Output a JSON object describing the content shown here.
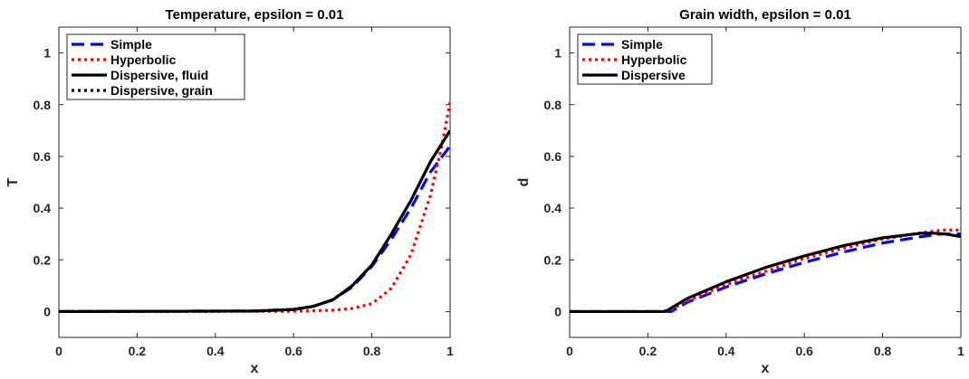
{
  "chart_data": [
    {
      "type": "line",
      "title": "Temperature, epsilon = 0.01",
      "xlabel": "x",
      "ylabel": "T",
      "xlim": [
        0,
        1
      ],
      "ylim": [
        -0.1,
        1.1
      ],
      "xticks": [
        "0",
        "0.2",
        "0.4",
        "0.6",
        "0.8",
        "1"
      ],
      "yticks": [
        "0",
        "0.2",
        "0.4",
        "0.6",
        "0.8",
        "1"
      ],
      "legend_position": "top-left",
      "series": [
        {
          "name": "Simple",
          "color": "#0000ff",
          "style": "dashed",
          "x": [
            0,
            0.5,
            0.6,
            0.65,
            0.7,
            0.75,
            0.8,
            0.85,
            0.9,
            0.95,
            1.0
          ],
          "y": [
            0,
            0.002,
            0.008,
            0.02,
            0.045,
            0.095,
            0.175,
            0.28,
            0.4,
            0.54,
            0.64
          ]
        },
        {
          "name": "Hyperbolic",
          "color": "#ff0000",
          "style": "dotted",
          "x": [
            0,
            0.6,
            0.7,
            0.75,
            0.8,
            0.85,
            0.9,
            0.95,
            0.98,
            1.0
          ],
          "y": [
            0,
            0.001,
            0.005,
            0.012,
            0.03,
            0.09,
            0.22,
            0.45,
            0.65,
            0.81
          ]
        },
        {
          "name": "Dispersive, fluid",
          "color": "#000000",
          "style": "solid",
          "x": [
            0,
            0.5,
            0.6,
            0.65,
            0.7,
            0.75,
            0.8,
            0.85,
            0.9,
            0.95,
            1.0
          ],
          "y": [
            0,
            0.002,
            0.008,
            0.02,
            0.045,
            0.1,
            0.18,
            0.3,
            0.43,
            0.58,
            0.7
          ]
        },
        {
          "name": "Dispersive, grain",
          "color": "#000000",
          "style": "dotted",
          "x": [
            0,
            0.5,
            0.6,
            0.65,
            0.7,
            0.75,
            0.8,
            0.85,
            0.9,
            0.95,
            1.0
          ],
          "y": [
            0,
            0.002,
            0.008,
            0.02,
            0.045,
            0.1,
            0.18,
            0.3,
            0.43,
            0.58,
            0.7
          ]
        }
      ]
    },
    {
      "type": "line",
      "title": "Grain width, epsilon = 0.01",
      "xlabel": "x",
      "ylabel": "d",
      "xlim": [
        0,
        1
      ],
      "ylim": [
        -0.1,
        1.1
      ],
      "xticks": [
        "0",
        "0.2",
        "0.4",
        "0.6",
        "0.8",
        "1"
      ],
      "yticks": [
        "0",
        "0.2",
        "0.4",
        "0.6",
        "0.8",
        "1"
      ],
      "legend_position": "top-left",
      "series": [
        {
          "name": "Simple",
          "color": "#0000ff",
          "style": "dashed",
          "x": [
            0,
            0.25,
            0.26,
            0.3,
            0.4,
            0.5,
            0.6,
            0.7,
            0.8,
            0.9,
            0.95,
            1.0
          ],
          "y": [
            0,
            0,
            0,
            0.035,
            0.095,
            0.145,
            0.19,
            0.23,
            0.265,
            0.29,
            0.3,
            0.3
          ]
        },
        {
          "name": "Hyperbolic",
          "color": "#ff0000",
          "style": "dotted",
          "x": [
            0,
            0.24,
            0.25,
            0.3,
            0.4,
            0.5,
            0.6,
            0.7,
            0.8,
            0.9,
            0.95,
            1.0
          ],
          "y": [
            0,
            0,
            0,
            0.04,
            0.105,
            0.155,
            0.205,
            0.245,
            0.28,
            0.305,
            0.315,
            0.315
          ]
        },
        {
          "name": "Dispersive",
          "color": "#000000",
          "style": "solid",
          "x": [
            0,
            0.24,
            0.25,
            0.3,
            0.4,
            0.5,
            0.6,
            0.7,
            0.8,
            0.9,
            0.93,
            0.96,
            1.0
          ],
          "y": [
            0,
            0,
            0.005,
            0.05,
            0.115,
            0.17,
            0.215,
            0.255,
            0.285,
            0.303,
            0.303,
            0.3,
            0.29
          ]
        }
      ]
    }
  ]
}
